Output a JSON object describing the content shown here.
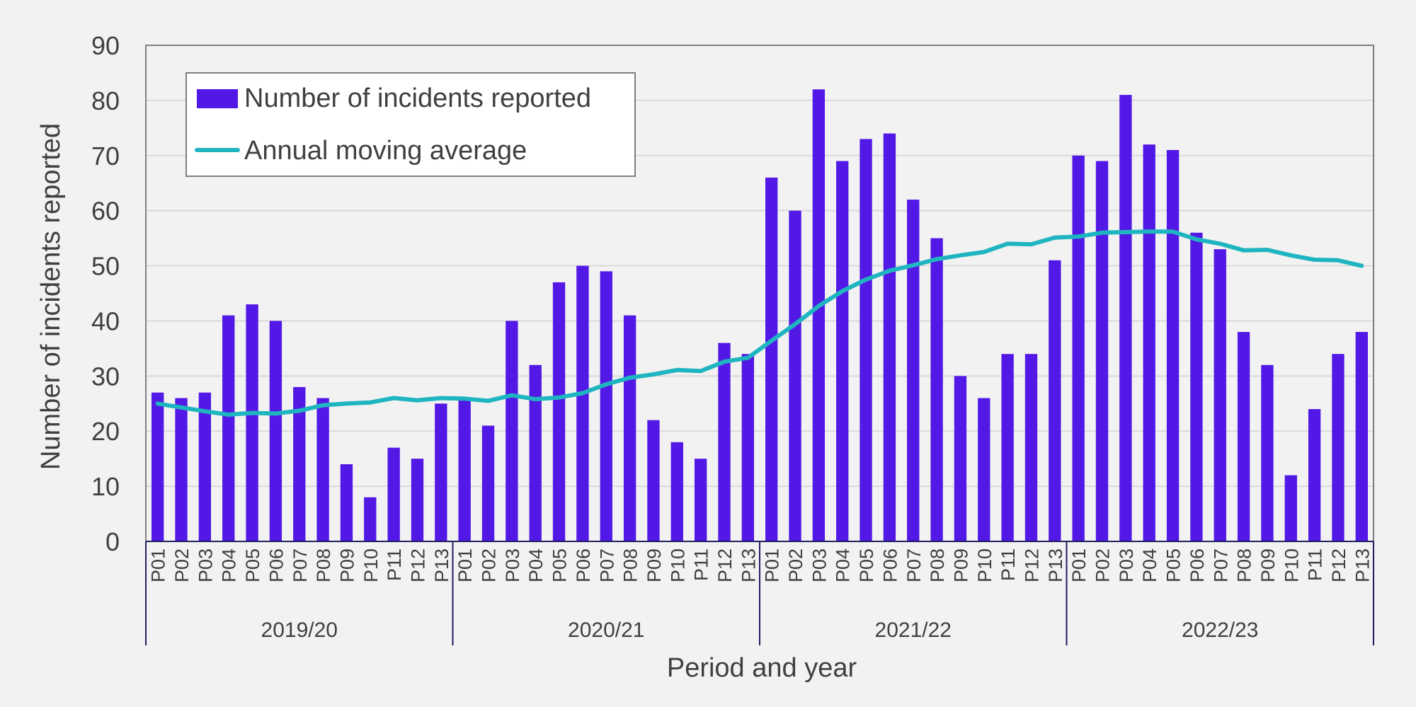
{
  "chart_data": {
    "type": "bar",
    "ylabel": "Number of incidents reported",
    "xlabel": "Period and year",
    "ylim": [
      0,
      90
    ],
    "y_ticks": [
      0,
      10,
      20,
      30,
      40,
      50,
      60,
      70,
      80,
      90
    ],
    "grid": true,
    "legend_position": "top-left",
    "groups": [
      {
        "label": "2019/20",
        "periods": [
          "P01",
          "P02",
          "P03",
          "P04",
          "P05",
          "P06",
          "P07",
          "P08",
          "P09",
          "P10",
          "P11",
          "P12",
          "P13"
        ]
      },
      {
        "label": "2020/21",
        "periods": [
          "P01",
          "P02",
          "P03",
          "P04",
          "P05",
          "P06",
          "P07",
          "P08",
          "P09",
          "P10",
          "P11",
          "P12",
          "P13"
        ]
      },
      {
        "label": "2021/22",
        "periods": [
          "P01",
          "P02",
          "P03",
          "P04",
          "P05",
          "P06",
          "P07",
          "P08",
          "P09",
          "P10",
          "P11",
          "P12",
          "P13"
        ]
      },
      {
        "label": "2022/23",
        "periods": [
          "P01",
          "P02",
          "P03",
          "P04",
          "P05",
          "P06",
          "P07",
          "P08",
          "P09",
          "P10",
          "P11",
          "P12",
          "P13"
        ]
      }
    ],
    "series": [
      {
        "name": "Number of incidents reported",
        "type": "bar",
        "color": "#5218e6",
        "values": [
          27,
          26,
          27,
          41,
          43,
          40,
          28,
          26,
          14,
          8,
          17,
          15,
          25,
          26,
          21,
          40,
          32,
          47,
          50,
          49,
          41,
          22,
          18,
          15,
          36,
          34,
          66,
          60,
          82,
          69,
          73,
          74,
          62,
          55,
          30,
          26,
          34,
          34,
          51,
          70,
          69,
          81,
          72,
          71,
          56,
          53,
          38,
          32,
          12,
          24,
          34,
          38
        ]
      },
      {
        "name": "Annual moving average",
        "type": "line",
        "color": "#1fb5c0",
        "values": [
          25,
          24.3,
          23.6,
          23,
          23.3,
          23.2,
          23.7,
          24.7,
          25,
          25.2,
          26,
          25.6,
          26,
          25.9,
          25.5,
          26.5,
          25.8,
          26.1,
          26.9,
          28.5,
          29.7,
          30.3,
          31.1,
          30.9,
          32.6,
          33.3,
          36.4,
          39.4,
          42.7,
          45.4,
          47.5,
          49.1,
          50.1,
          51.2,
          51.9,
          52.5,
          54,
          53.9,
          55.1,
          55.3,
          56,
          56.1,
          56.2,
          56.2,
          54.8,
          54,
          52.8,
          52.9,
          51.9,
          51.1,
          51,
          50
        ]
      }
    ]
  }
}
